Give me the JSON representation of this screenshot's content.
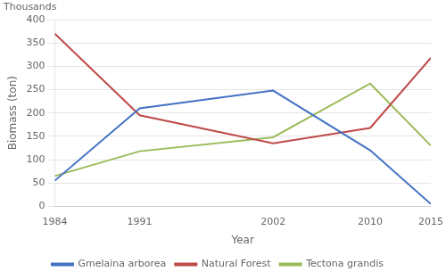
{
  "chart_data": {
    "type": "line",
    "x": [
      1984,
      1991,
      2002,
      2010,
      2015
    ],
    "series": [
      {
        "name": "Gmelaina arborea",
        "color": "#4472C4",
        "values": [
          55,
          210,
          248,
          120,
          5
        ]
      },
      {
        "name": "Natural Forest",
        "color": "#BE4B48",
        "values": [
          370,
          195,
          135,
          168,
          318
        ]
      },
      {
        "name": "Tectona grandis",
        "color": "#9BBB59",
        "values": [
          65,
          118,
          148,
          263,
          130
        ]
      }
    ],
    "x_label": "Year",
    "y_label": "Biomass (ton)",
    "annotation": "Thousands",
    "xlim": [
      1984,
      2015
    ],
    "xticks": [
      1984,
      1991,
      2002,
      2010,
      2015
    ],
    "ylim": [
      0,
      400
    ],
    "yticks": [
      0,
      50,
      100,
      150,
      200,
      250,
      300,
      350,
      400
    ],
    "grid": "y",
    "legend": "bottom"
  }
}
